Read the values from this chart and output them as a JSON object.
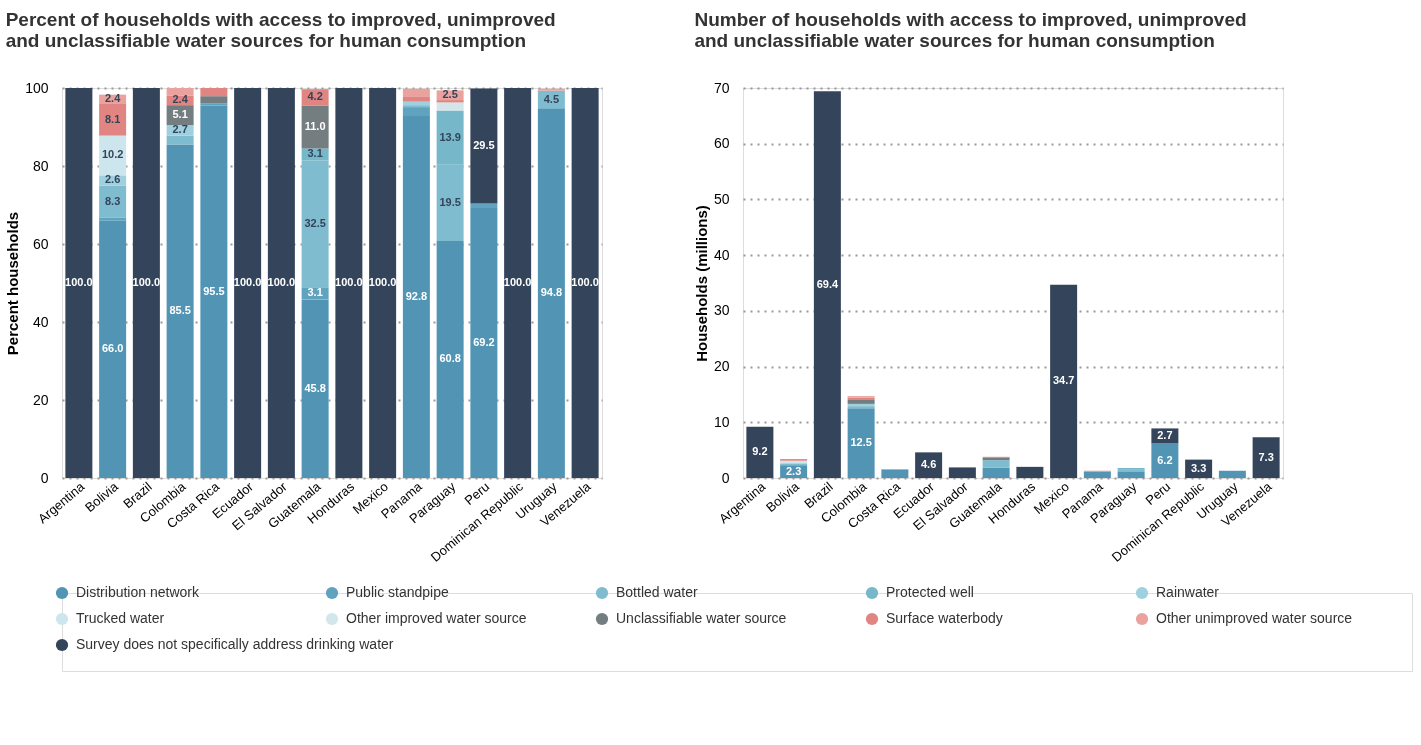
{
  "chart_data": [
    {
      "type": "bar",
      "stacked": true,
      "title": "Percent of households with access to improved, unimproved\nand unclassifiable water sources for human consumption",
      "ylabel": "Percent households",
      "categories": [
        "Argentina",
        "Bolivia",
        "Brazil",
        "Colombia",
        "Costa Rica",
        "Ecuador",
        "El Salvador",
        "Guatemala",
        "Honduras",
        "Mexico",
        "Panama",
        "Paraguay",
        "Peru",
        "Dominican Republic",
        "Uruguay",
        "Venezuela"
      ],
      "ylim": [
        0,
        100
      ],
      "yticks": [
        0,
        20,
        40,
        60,
        80,
        100
      ],
      "grid": "y",
      "legend": "bottom",
      "marker": "circle",
      "series": [
        {
          "name": "Distribution network",
          "color": "#5294b4",
          "values": [
            null,
            66.0,
            null,
            85.5,
            95.5,
            null,
            null,
            45.8,
            null,
            null,
            92.8,
            60.8,
            69.2,
            null,
            94.8,
            null
          ],
          "value_labels": [
            null,
            "66.0",
            null,
            "85.5",
            "95.5",
            null,
            null,
            "45.8",
            null,
            null,
            "92.8",
            "60.8",
            "69.2",
            null,
            "94.8",
            null
          ]
        },
        {
          "name": "Public standpipe",
          "color": "#5fa3bf",
          "values": [
            null,
            0.7,
            null,
            null,
            0.6,
            null,
            null,
            3.1,
            null,
            null,
            2.3,
            null,
            1.2,
            null,
            null,
            null
          ],
          "value_labels": [
            null,
            null,
            null,
            null,
            null,
            null,
            null,
            "3.1",
            null,
            null,
            null,
            null,
            null,
            null,
            null,
            null
          ]
        },
        {
          "name": "Bottled water",
          "color": "#80bccf",
          "values": [
            null,
            8.3,
            null,
            2.3,
            null,
            null,
            null,
            32.5,
            null,
            null,
            0.5,
            19.5,
            null,
            null,
            4.5,
            null
          ],
          "value_labels": [
            null,
            "8.3",
            null,
            null,
            null,
            null,
            null,
            "32.5",
            null,
            null,
            null,
            "19.5",
            null,
            null,
            "4.5",
            null
          ]
        },
        {
          "name": "Protected well",
          "color": "#76b8ca",
          "values": [
            null,
            null,
            null,
            null,
            null,
            null,
            null,
            3.1,
            null,
            null,
            null,
            13.9,
            null,
            null,
            null,
            null
          ],
          "value_labels": [
            null,
            null,
            null,
            null,
            null,
            null,
            null,
            "3.1",
            null,
            null,
            null,
            "13.9",
            null,
            null,
            null,
            null
          ]
        },
        {
          "name": "Rainwater",
          "color": "#9fd0e0",
          "values": [
            null,
            2.6,
            null,
            2.7,
            null,
            null,
            null,
            null,
            null,
            null,
            0.9,
            null,
            null,
            null,
            null,
            null
          ],
          "value_labels": [
            null,
            "2.6",
            null,
            "2.7",
            null,
            null,
            null,
            null,
            null,
            null,
            null,
            null,
            null,
            null,
            null,
            null
          ]
        },
        {
          "name": "Trucked water",
          "color": "#cde6ee",
          "values": [
            null,
            10.2,
            null,
            null,
            null,
            null,
            null,
            null,
            null,
            null,
            null,
            null,
            null,
            null,
            null,
            null
          ],
          "value_labels": [
            null,
            "10.2",
            null,
            null,
            null,
            null,
            null,
            null,
            null,
            null,
            null,
            null,
            null,
            null,
            null,
            null
          ]
        },
        {
          "name": "Other improved water source",
          "color": "#d3e6eb",
          "values": [
            null,
            null,
            null,
            null,
            null,
            null,
            null,
            null,
            null,
            null,
            null,
            2.1,
            null,
            null,
            null,
            null
          ],
          "value_labels": [
            null,
            null,
            null,
            null,
            null,
            null,
            null,
            null,
            null,
            null,
            null,
            null,
            null,
            null,
            null,
            null
          ]
        },
        {
          "name": "Unclassifiable water source",
          "color": "#747d80",
          "values": [
            null,
            null,
            null,
            5.1,
            1.8,
            null,
            null,
            11.0,
            null,
            null,
            null,
            null,
            null,
            null,
            null,
            null
          ],
          "value_labels": [
            null,
            null,
            null,
            "5.1",
            null,
            null,
            null,
            "11.0",
            null,
            null,
            null,
            null,
            null,
            null,
            null,
            null
          ]
        },
        {
          "name": "Surface waterbody",
          "color": "#e08581",
          "values": [
            null,
            8.1,
            null,
            2.4,
            2.1,
            null,
            null,
            4.2,
            null,
            null,
            1.2,
            0.6,
            null,
            null,
            null,
            null
          ],
          "value_labels": [
            null,
            "8.1",
            null,
            "2.4",
            null,
            null,
            null,
            "4.2",
            null,
            null,
            null,
            null,
            null,
            null,
            null,
            null
          ]
        },
        {
          "name": "Other unimproved water source",
          "color": "#eaa29e",
          "values": [
            null,
            2.4,
            null,
            2.0,
            null,
            null,
            null,
            null,
            null,
            null,
            2.1,
            2.5,
            null,
            null,
            0.5,
            null
          ],
          "value_labels": [
            null,
            "2.4",
            null,
            null,
            null,
            null,
            null,
            null,
            null,
            null,
            null,
            "2.5",
            null,
            null,
            null,
            null
          ]
        },
        {
          "name": "Survey does not specifically address drinking water",
          "color": "#34445a",
          "values": [
            100.0,
            null,
            100.0,
            null,
            null,
            100.0,
            100.0,
            null,
            100.0,
            100.0,
            null,
            null,
            29.5,
            100.0,
            null,
            100.0
          ],
          "value_labels": [
            "100.0",
            null,
            "100.0",
            null,
            null,
            "100.0",
            "100.0",
            null,
            "100.0",
            "100.0",
            null,
            null,
            "29.5",
            "100.0",
            null,
            "100.0"
          ]
        }
      ]
    },
    {
      "type": "bar",
      "stacked": true,
      "title": "Number of households with access to improved, unimproved\nand unclassifiable water sources for human consumption",
      "ylabel": "Households (millions)",
      "categories": [
        "Argentina",
        "Bolivia",
        "Brazil",
        "Colombia",
        "Costa Rica",
        "Ecuador",
        "El Salvador",
        "Guatemala",
        "Honduras",
        "Mexico",
        "Panama",
        "Paraguay",
        "Peru",
        "Dominican Republic",
        "Uruguay",
        "Venezuela"
      ],
      "ylim": [
        0,
        70
      ],
      "yticks": [
        0,
        10,
        20,
        30,
        40,
        50,
        60,
        70
      ],
      "grid": "y",
      "series": [
        {
          "name": "Distribution network",
          "color": "#5294b4",
          "values": [
            null,
            2.3,
            null,
            12.5,
            1.5,
            null,
            null,
            1.8,
            null,
            null,
            1.1,
            1.2,
            6.2,
            null,
            1.3,
            null
          ],
          "value_labels": [
            null,
            "2.3",
            null,
            "12.5",
            null,
            null,
            null,
            null,
            null,
            null,
            null,
            null,
            "6.2",
            null,
            null,
            null
          ]
        },
        {
          "name": "Public standpipe",
          "color": "#5fa3bf",
          "values": [
            null,
            null,
            null,
            null,
            null,
            null,
            null,
            0.1,
            null,
            null,
            0.1,
            null,
            null,
            null,
            null,
            null
          ],
          "value_labels": [
            null,
            null,
            null,
            null,
            null,
            null,
            null,
            null,
            null,
            null,
            null,
            null,
            null,
            null,
            null,
            null
          ]
        },
        {
          "name": "Bottled water",
          "color": "#80bccf",
          "values": [
            null,
            0.3,
            null,
            0.4,
            null,
            null,
            null,
            1.3,
            null,
            null,
            null,
            0.4,
            null,
            null,
            null,
            null
          ],
          "value_labels": [
            null,
            null,
            null,
            null,
            null,
            null,
            null,
            null,
            null,
            null,
            null,
            null,
            null,
            null,
            null,
            null
          ]
        },
        {
          "name": "Protected well",
          "color": "#76b8ca",
          "values": [
            null,
            null,
            null,
            null,
            null,
            null,
            null,
            null,
            null,
            null,
            null,
            0.2,
            null,
            null,
            null,
            null
          ],
          "value_labels": [
            null,
            null,
            null,
            null,
            null,
            null,
            null,
            null,
            null,
            null,
            null,
            null,
            null,
            null,
            null,
            null
          ]
        },
        {
          "name": "Rainwater",
          "color": "#9fd0e0",
          "values": [
            null,
            0.1,
            null,
            0.4,
            null,
            null,
            null,
            null,
            null,
            null,
            null,
            null,
            null,
            null,
            null,
            null
          ],
          "value_labels": [
            null,
            null,
            null,
            null,
            null,
            null,
            null,
            null,
            null,
            null,
            null,
            null,
            null,
            null,
            null,
            null
          ]
        },
        {
          "name": "Trucked water",
          "color": "#cde6ee",
          "values": [
            null,
            0.4,
            null,
            null,
            null,
            null,
            null,
            null,
            null,
            null,
            null,
            null,
            null,
            null,
            null,
            null
          ],
          "value_labels": [
            null,
            null,
            null,
            null,
            null,
            null,
            null,
            null,
            null,
            null,
            null,
            null,
            null,
            null,
            null,
            null
          ]
        },
        {
          "name": "Unclassifiable water source",
          "color": "#747d80",
          "values": [
            null,
            null,
            null,
            0.7,
            null,
            null,
            null,
            0.4,
            null,
            null,
            null,
            null,
            null,
            null,
            null,
            null
          ],
          "value_labels": [
            null,
            null,
            null,
            null,
            null,
            null,
            null,
            null,
            null,
            null,
            null,
            null,
            null,
            null,
            null,
            null
          ]
        },
        {
          "name": "Surface waterbody",
          "color": "#e08581",
          "values": [
            null,
            0.3,
            null,
            0.4,
            0.1,
            null,
            null,
            0.2,
            null,
            null,
            0.1,
            null,
            null,
            null,
            null,
            null
          ],
          "value_labels": [
            null,
            null,
            null,
            null,
            null,
            null,
            null,
            null,
            null,
            null,
            null,
            null,
            null,
            null,
            null,
            null
          ]
        },
        {
          "name": "Other unimproved water source",
          "color": "#eaa29e",
          "values": [
            null,
            null,
            null,
            0.3,
            null,
            null,
            null,
            null,
            null,
            null,
            null,
            null,
            null,
            null,
            null,
            null
          ],
          "value_labels": [
            null,
            null,
            null,
            null,
            null,
            null,
            null,
            null,
            null,
            null,
            null,
            null,
            null,
            null,
            null,
            null
          ]
        },
        {
          "name": "Survey does not specifically address drinking water",
          "color": "#34445a",
          "values": [
            9.2,
            null,
            69.4,
            null,
            null,
            4.6,
            1.9,
            null,
            2.0,
            34.7,
            null,
            null,
            2.7,
            3.3,
            null,
            7.3
          ],
          "value_labels": [
            "9.2",
            null,
            "69.4",
            null,
            null,
            "4.6",
            null,
            null,
            null,
            "34.7",
            null,
            null,
            "2.7",
            "3.3",
            null,
            "7.3"
          ]
        }
      ]
    }
  ]
}
